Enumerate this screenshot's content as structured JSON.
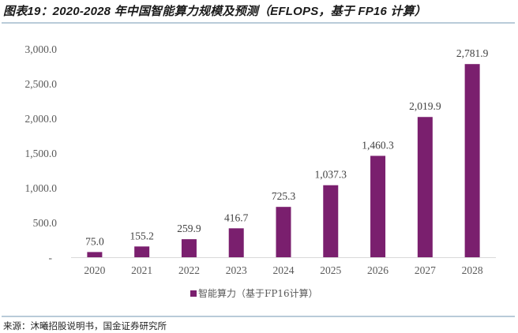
{
  "header": {
    "title": "图表19：2020-2028 年中国智能算力规模及预测（EFLOPS，基于 FP16 计算）"
  },
  "footer": {
    "source": "来源：沐曦招股说明书，国金证券研究所"
  },
  "colors": {
    "bar": "#7a1f6e",
    "rule": "#b9cbd9",
    "axis": "#d9d9d9"
  },
  "chart_data": {
    "type": "bar",
    "title": "2020-2028 年中国智能算力规模及预测（EFLOPS，基于 FP16 计算）",
    "xlabel": "",
    "ylabel": "",
    "categories": [
      "2020",
      "2021",
      "2022",
      "2023",
      "2024",
      "2025",
      "2026",
      "2027",
      "2028"
    ],
    "series": [
      {
        "name": "智能算力（基于FP16计算）",
        "values": [
          75.0,
          155.2,
          259.9,
          416.7,
          725.3,
          1037.3,
          1460.3,
          2019.9,
          2781.9
        ],
        "labels": [
          "75.0",
          "155.2",
          "259.9",
          "416.7",
          "725.3",
          "1,037.3",
          "1,460.3",
          "2,019.9",
          "2,781.9"
        ]
      }
    ],
    "ylim": [
      0,
      3000
    ],
    "yticks": [
      0,
      500,
      1000,
      1500,
      2000,
      2500,
      3000
    ],
    "ytick_labels": [
      "-",
      "500.0",
      "1,000.0",
      "1,500.0",
      "2,000.0",
      "2,500.0",
      "3,000.0"
    ],
    "grid": false,
    "legend": {
      "position": "bottom-center",
      "entries": [
        "智能算力（基于FP16计算）"
      ]
    }
  }
}
